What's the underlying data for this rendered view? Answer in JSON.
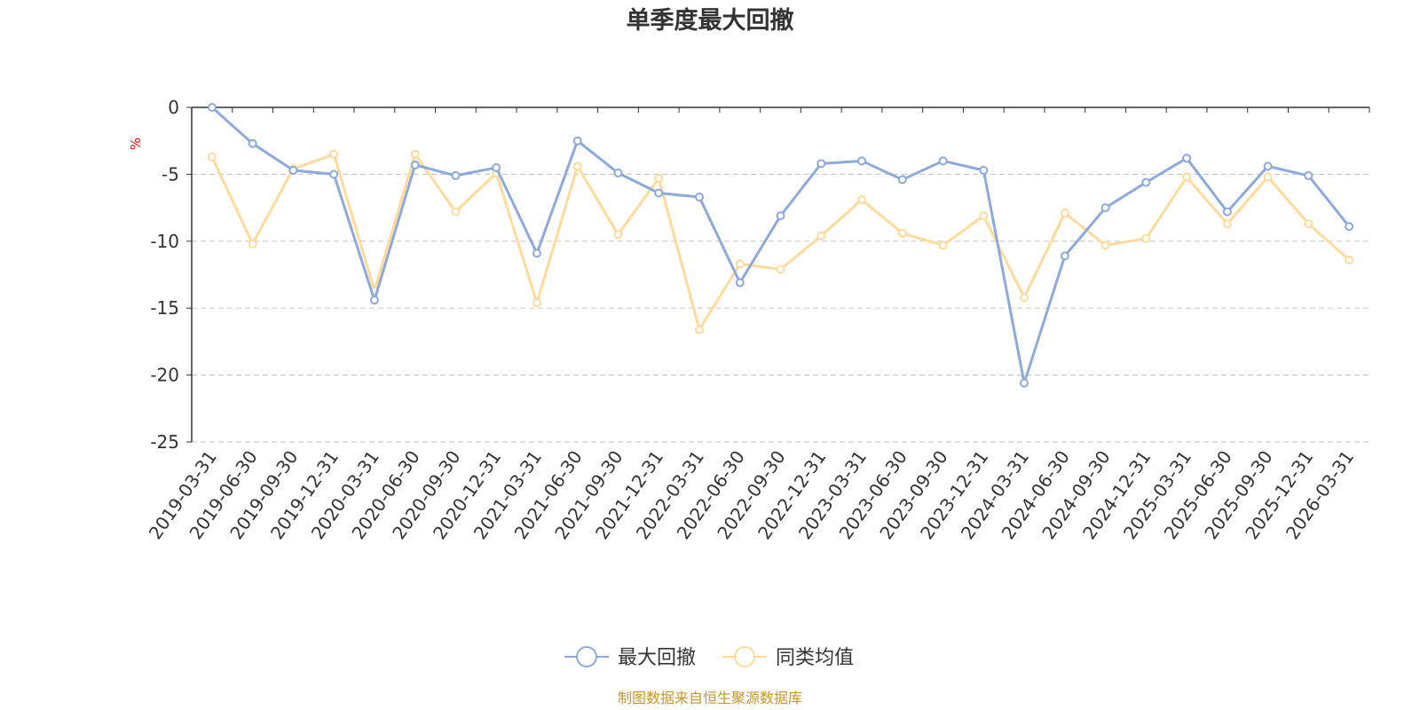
{
  "chart_data": {
    "type": "line",
    "title": "单季度最大回撤",
    "unit_label": "%",
    "ylim": [
      -25,
      0
    ],
    "y_ticks": [
      0,
      -5,
      -10,
      -15,
      -20,
      -25
    ],
    "grid": "horizontal-dashed",
    "legend_position": "bottom-center",
    "categories": [
      "2019-03-31",
      "2019-06-30",
      "2019-09-30",
      "2019-12-31",
      "2020-03-31",
      "2020-06-30",
      "2020-09-30",
      "2020-12-31",
      "2021-03-31",
      "2021-06-30",
      "2021-09-30",
      "2021-12-31",
      "2022-03-31",
      "2022-06-30",
      "2022-09-30",
      "2022-12-31",
      "2023-03-31",
      "2023-06-30",
      "2023-09-30",
      "2023-12-31",
      "2024-03-31",
      "2024-06-30",
      "2024-09-30",
      "2024-12-31",
      "2025-03-31",
      "2025-06-30",
      "2025-09-30",
      "2025-12-31",
      "2026-03-31"
    ],
    "series": [
      {
        "name": "最大回撤",
        "color": "#8eaadb",
        "values": [
          0,
          -2.7,
          -4.7,
          -5.0,
          -14.4,
          -4.3,
          -5.1,
          -4.5,
          -10.9,
          -2.5,
          -4.9,
          -6.4,
          -6.7,
          -13.1,
          -8.1,
          -4.2,
          -4.0,
          -5.4,
          -4.0,
          -4.7,
          -20.6,
          -11.1,
          -7.5,
          -5.6,
          -3.8,
          -7.8,
          -4.4,
          -5.1,
          -8.9
        ]
      },
      {
        "name": "同类均值",
        "color": "#fedb9a",
        "values": [
          -3.7,
          -10.2,
          -4.6,
          -3.5,
          -13.7,
          -3.5,
          -7.8,
          -4.9,
          -14.6,
          -4.4,
          -9.5,
          -5.3,
          -16.6,
          -11.7,
          -12.1,
          -9.6,
          -6.9,
          -9.4,
          -10.3,
          -8.1,
          -14.2,
          -7.9,
          -10.3,
          -9.8,
          -5.2,
          -8.7,
          -5.2,
          -8.7,
          -11.4
        ]
      }
    ]
  },
  "footer": {
    "source": "制图数据来自恒生聚源数据库"
  }
}
